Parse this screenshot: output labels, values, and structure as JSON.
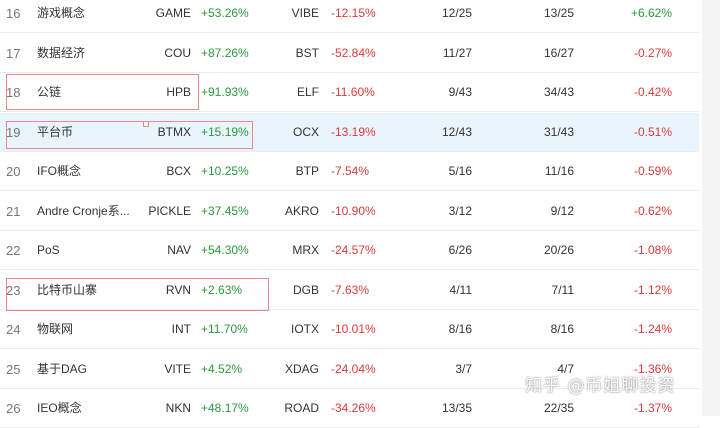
{
  "rows": [
    {
      "rank": "16",
      "name": "游戏概念",
      "sym1": "GAME",
      "pct1": "+53.26%",
      "sym2": "VIBE",
      "pct2": "-12.15%",
      "f1": "12/25",
      "f2": "13/25",
      "pct3": "+6.62%"
    },
    {
      "rank": "17",
      "name": "数据经济",
      "sym1": "COU",
      "pct1": "+87.26%",
      "sym2": "BST",
      "pct2": "-52.84%",
      "f1": "11/27",
      "f2": "16/27",
      "pct3": "-0.27%"
    },
    {
      "rank": "18",
      "name": "公链",
      "sym1": "HPB",
      "pct1": "+91.93%",
      "sym2": "ELF",
      "pct2": "-11.60%",
      "f1": "9/43",
      "f2": "34/43",
      "pct3": "-0.42%"
    },
    {
      "rank": "19",
      "name": "平台币",
      "sym1": "BTMX",
      "pct1": "+15.19%",
      "sym2": "OCX",
      "pct2": "-13.19%",
      "f1": "12/43",
      "f2": "31/43",
      "pct3": "-0.51%"
    },
    {
      "rank": "20",
      "name": "IFO概念",
      "sym1": "BCX",
      "pct1": "+10.25%",
      "sym2": "BTP",
      "pct2": "-7.54%",
      "f1": "5/16",
      "f2": "11/16",
      "pct3": "-0.59%"
    },
    {
      "rank": "21",
      "name": "Andre Cronje系...",
      "sym1": "PICKLE",
      "pct1": "+37.45%",
      "sym2": "AKRO",
      "pct2": "-10.90%",
      "f1": "3/12",
      "f2": "9/12",
      "pct3": "-0.62%"
    },
    {
      "rank": "22",
      "name": "PoS",
      "sym1": "NAV",
      "pct1": "+54.30%",
      "sym2": "MRX",
      "pct2": "-24.57%",
      "f1": "6/26",
      "f2": "20/26",
      "pct3": "-1.08%"
    },
    {
      "rank": "23",
      "name": "比特币山寨",
      "sym1": "RVN",
      "pct1": "+2.63%",
      "sym2": "DGB",
      "pct2": "-7.63%",
      "f1": "4/11",
      "f2": "7/11",
      "pct3": "-1.12%"
    },
    {
      "rank": "24",
      "name": "物联网",
      "sym1": "INT",
      "pct1": "+11.70%",
      "sym2": "IOTX",
      "pct2": "-10.01%",
      "f1": "8/16",
      "f2": "8/16",
      "pct3": "-1.24%"
    },
    {
      "rank": "25",
      "name": "基于DAG",
      "sym1": "VITE",
      "pct1": "+4.52%",
      "sym2": "XDAG",
      "pct2": "-24.04%",
      "f1": "3/7",
      "f2": "4/7",
      "pct3": "-1.36%"
    },
    {
      "rank": "26",
      "name": "IEO概念",
      "sym1": "NKN",
      "pct1": "+48.17%",
      "sym2": "ROAD",
      "pct2": "-34.26%",
      "f1": "13/35",
      "f2": "22/35",
      "pct3": "-1.37%"
    }
  ],
  "watermark": "知乎 @币姐聊投资",
  "colors": {
    "up": "#2a9a3c",
    "down": "#d93b3b",
    "highlight": "#e9f4fc",
    "annotation": "#e88a8a"
  }
}
